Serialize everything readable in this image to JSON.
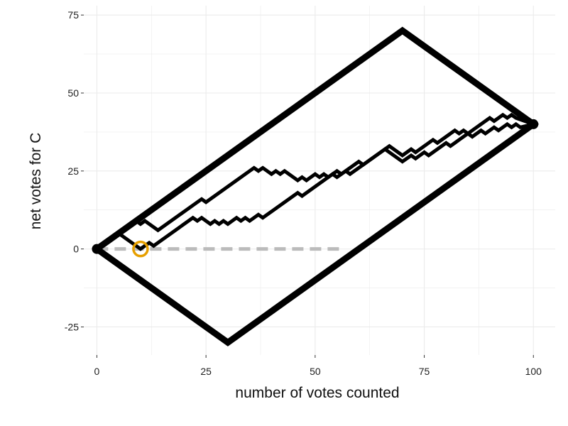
{
  "chart_data": {
    "type": "line",
    "xlabel": "number of votes counted",
    "ylabel": "net votes for C",
    "xlim": [
      -3,
      105
    ],
    "ylim": [
      -34,
      78
    ],
    "x_ticks": [
      0,
      25,
      50,
      75,
      100
    ],
    "y_ticks": [
      -25,
      0,
      25,
      50,
      75
    ],
    "grid": true,
    "legend": "none",
    "colors": {
      "paths": "#000000",
      "reference_line": "#bbbbbb",
      "marker": "#E69F00",
      "grid": "#ebebeb"
    },
    "series": [
      {
        "role": "feasible-region-boundary",
        "points": [
          [
            0,
            0
          ],
          [
            70,
            70
          ],
          [
            100,
            40
          ],
          [
            30,
            -30
          ],
          [
            0,
            0
          ]
        ]
      },
      {
        "role": "count-path-upper",
        "points": [
          [
            0,
            0
          ],
          [
            5,
            5
          ],
          [
            7,
            7
          ],
          [
            9,
            9
          ],
          [
            10,
            8
          ],
          [
            11,
            9
          ],
          [
            12,
            8
          ],
          [
            14,
            6
          ],
          [
            24,
            16
          ],
          [
            25,
            15
          ],
          [
            36,
            26
          ],
          [
            37,
            25
          ],
          [
            38,
            26
          ],
          [
            40,
            24
          ],
          [
            41,
            25
          ],
          [
            42,
            24
          ],
          [
            43,
            25
          ],
          [
            46,
            22
          ],
          [
            47,
            23
          ],
          [
            48,
            22
          ],
          [
            49,
            23
          ],
          [
            50,
            24
          ],
          [
            51,
            23
          ],
          [
            52,
            24
          ],
          [
            53,
            23
          ],
          [
            55,
            25
          ],
          [
            56,
            24
          ],
          [
            60,
            28
          ],
          [
            61,
            27
          ],
          [
            67,
            33
          ],
          [
            70,
            30
          ],
          [
            72,
            32
          ],
          [
            73,
            31
          ],
          [
            77,
            35
          ],
          [
            78,
            34
          ],
          [
            82,
            38
          ],
          [
            83,
            37
          ],
          [
            84,
            38
          ],
          [
            85,
            37
          ],
          [
            90,
            42
          ],
          [
            91,
            41
          ],
          [
            93,
            43
          ],
          [
            94,
            42
          ],
          [
            95,
            43
          ],
          [
            96,
            42
          ],
          [
            100,
            40
          ]
        ]
      },
      {
        "role": "count-path-lower",
        "points": [
          [
            0,
            0
          ],
          [
            5,
            5
          ],
          [
            7,
            3
          ],
          [
            10,
            0
          ],
          [
            12,
            2
          ],
          [
            13,
            1
          ],
          [
            14,
            2
          ],
          [
            22,
            10
          ],
          [
            23,
            9
          ],
          [
            24,
            10
          ],
          [
            25,
            9
          ],
          [
            26,
            8
          ],
          [
            27,
            9
          ],
          [
            28,
            8
          ],
          [
            29,
            9
          ],
          [
            30,
            8
          ],
          [
            31,
            9
          ],
          [
            32,
            10
          ],
          [
            33,
            9
          ],
          [
            34,
            10
          ],
          [
            35,
            9
          ],
          [
            37,
            11
          ],
          [
            38,
            10
          ],
          [
            46,
            18
          ],
          [
            47,
            17
          ],
          [
            54,
            24
          ],
          [
            55,
            23
          ],
          [
            57,
            25
          ],
          [
            58,
            24
          ],
          [
            65,
            31
          ],
          [
            66,
            32
          ],
          [
            70,
            28
          ],
          [
            72,
            30
          ],
          [
            73,
            29
          ],
          [
            75,
            31
          ],
          [
            76,
            30
          ],
          [
            80,
            34
          ],
          [
            81,
            33
          ],
          [
            82,
            34
          ],
          [
            83,
            35
          ],
          [
            85,
            37
          ],
          [
            86,
            36
          ],
          [
            88,
            38
          ],
          [
            89,
            37
          ],
          [
            91,
            39
          ],
          [
            92,
            38
          ],
          [
            94,
            40
          ],
          [
            95,
            39
          ],
          [
            96,
            40
          ],
          [
            97,
            39
          ],
          [
            100,
            40
          ]
        ]
      },
      {
        "role": "zero-reference",
        "style": "dashed",
        "points": [
          [
            0,
            0
          ],
          [
            56,
            0
          ]
        ]
      }
    ],
    "points": [
      {
        "role": "start",
        "x": 0,
        "y": 0
      },
      {
        "role": "end",
        "x": 100,
        "y": 40
      }
    ],
    "highlight": {
      "role": "circled-crossing",
      "x": 10,
      "y": 0
    }
  }
}
